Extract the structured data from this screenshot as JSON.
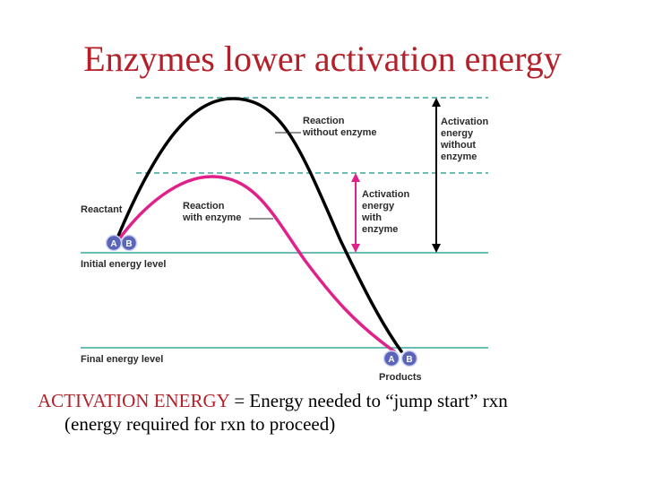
{
  "title": "Enzymes lower activation energy",
  "labels": {
    "reaction_without_enzyme": [
      "Reaction",
      "without enzyme"
    ],
    "reaction_with_enzyme": [
      "Reaction",
      "with enzyme"
    ],
    "activation_without": [
      "Activation",
      "energy",
      "without",
      "enzyme"
    ],
    "activation_with": [
      "Activation",
      "energy",
      "with",
      "enzyme"
    ],
    "reactant": "Reactant",
    "products": "Products",
    "initial_energy_level": "Initial energy level",
    "final_energy_level": "Final energy level",
    "ball_a": "A",
    "ball_b": "B"
  },
  "caption": {
    "term": "ACTIVATION ENERGY",
    "definition": " = Energy needed to “jump start” rxn",
    "line2": "(energy required for rxn to proceed)"
  },
  "colors": {
    "title": "#b3202a",
    "with_enzyme_curve": "#e0218a",
    "without_enzyme_curve": "#000000",
    "level_line": "#3aa59c",
    "ball": "#5a64b8"
  }
}
